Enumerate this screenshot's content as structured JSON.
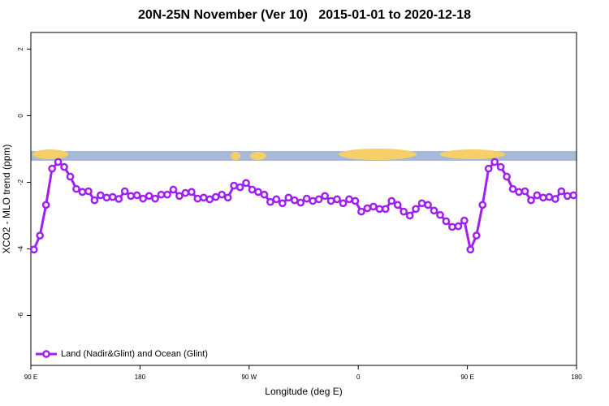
{
  "chart_data": {
    "type": "line",
    "title": "20N-25N November (Ver 10)   2015-01-01 to 2020-12-18",
    "x_label": "Longitude (deg E)",
    "y_label": "XCO2 - MLO trend (ppm)",
    "x": [
      92.5,
      97.5,
      102.5,
      107.5,
      112.5,
      117.5,
      122.5,
      127.5,
      132.5,
      137.5,
      142.5,
      147.5,
      152.5,
      157.5,
      162.5,
      167.5,
      172.5,
      177.5,
      182.5,
      187.5,
      192.5,
      197.5,
      202.5,
      207.5,
      212.5,
      217.5,
      222.5,
      227.5,
      232.5,
      237.5,
      242.5,
      247.5,
      252.5,
      257.5,
      262.5,
      267.5,
      272.5,
      277.5,
      282.5,
      287.5,
      292.5,
      297.5,
      302.5,
      307.5,
      312.5,
      317.5,
      322.5,
      327.5,
      332.5,
      337.5,
      342.5,
      347.5,
      352.5,
      357.5,
      362.5,
      367.5,
      372.5,
      377.5,
      382.5,
      387.5,
      392.5,
      397.5,
      402.5,
      407.5,
      412.5,
      417.5,
      422.5,
      427.5,
      432.5,
      437.5,
      442.5,
      447.5,
      452.5,
      457.5,
      462.5,
      467.5,
      472.5,
      477.5,
      482.5,
      487.5,
      492.5,
      497.5,
      502.5,
      507.5,
      512.5,
      517.5,
      522.5,
      527.5,
      532.5,
      537.5
    ],
    "series": [
      {
        "name": "Land (Nadir&Glint) and Ocean (Glint)",
        "color": "#a020f0",
        "values": [
          -4.02,
          -3.6,
          -2.68,
          -1.59,
          -1.39,
          -1.54,
          -1.83,
          -2.2,
          -2.29,
          -2.27,
          -2.54,
          -2.39,
          -2.46,
          -2.44,
          -2.5,
          -2.27,
          -2.41,
          -2.39,
          -2.49,
          -2.41,
          -2.49,
          -2.37,
          -2.37,
          -2.22,
          -2.41,
          -2.32,
          -2.29,
          -2.49,
          -2.46,
          -2.51,
          -2.44,
          -2.37,
          -2.46,
          -2.1,
          -2.15,
          -2.02,
          -2.22,
          -2.29,
          -2.37,
          -2.59,
          -2.51,
          -2.63,
          -2.46,
          -2.54,
          -2.61,
          -2.49,
          -2.56,
          -2.51,
          -2.41,
          -2.56,
          -2.51,
          -2.63,
          -2.51,
          -2.56,
          -2.88,
          -2.78,
          -2.73,
          -2.8,
          -2.8,
          -2.56,
          -2.68,
          -2.88,
          -3.0,
          -2.8,
          -2.63,
          -2.68,
          -2.85,
          -2.98,
          -3.17,
          -3.34,
          -3.32,
          -3.15,
          -4.02,
          -3.6,
          -2.68,
          -1.59,
          -1.39,
          -1.54,
          -1.83,
          -2.2,
          -2.29,
          -2.27,
          -2.54,
          -2.39,
          -2.46,
          -2.44,
          -2.5,
          -2.27,
          -2.41,
          -2.39
        ]
      }
    ],
    "xlim": [
      90,
      540
    ],
    "xticks": [
      {
        "value": 90,
        "label": "90 E"
      },
      180,
      {
        "value": 270,
        "label": "90 W"
      },
      {
        "value": 360,
        "label": "0"
      },
      {
        "value": 450,
        "label": "90 E"
      },
      {
        "value": 540,
        "label": "180"
      }
    ],
    "ylim": [
      -7.5,
      2.5
    ],
    "yticks": [
      2,
      0,
      -2,
      -4,
      -6
    ],
    "legend": "bottom-left"
  }
}
